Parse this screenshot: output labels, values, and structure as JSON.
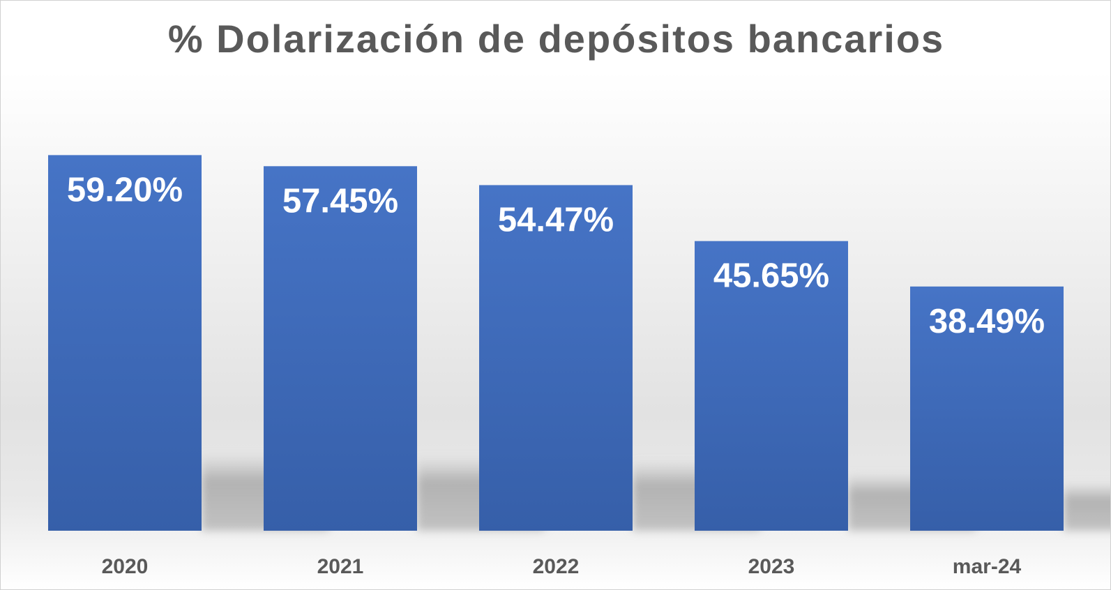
{
  "chart_data": {
    "type": "bar",
    "title": "% Dolarización de depósitos bancarios",
    "categories": [
      "2020",
      "2021",
      "2022",
      "2023",
      "mar-24"
    ],
    "values": [
      59.2,
      57.45,
      54.47,
      45.65,
      38.49
    ],
    "data_labels": [
      "59.20%",
      "57.45%",
      "54.47%",
      "45.65%",
      "38.49%"
    ],
    "xlabel": "",
    "ylabel": "",
    "ylim": [
      0,
      80
    ],
    "grid": false,
    "legend": "none",
    "bar_color": "#4472C4",
    "label_color": "#FFFFFF",
    "tick_color": "#595959",
    "title_color": "#595959"
  }
}
